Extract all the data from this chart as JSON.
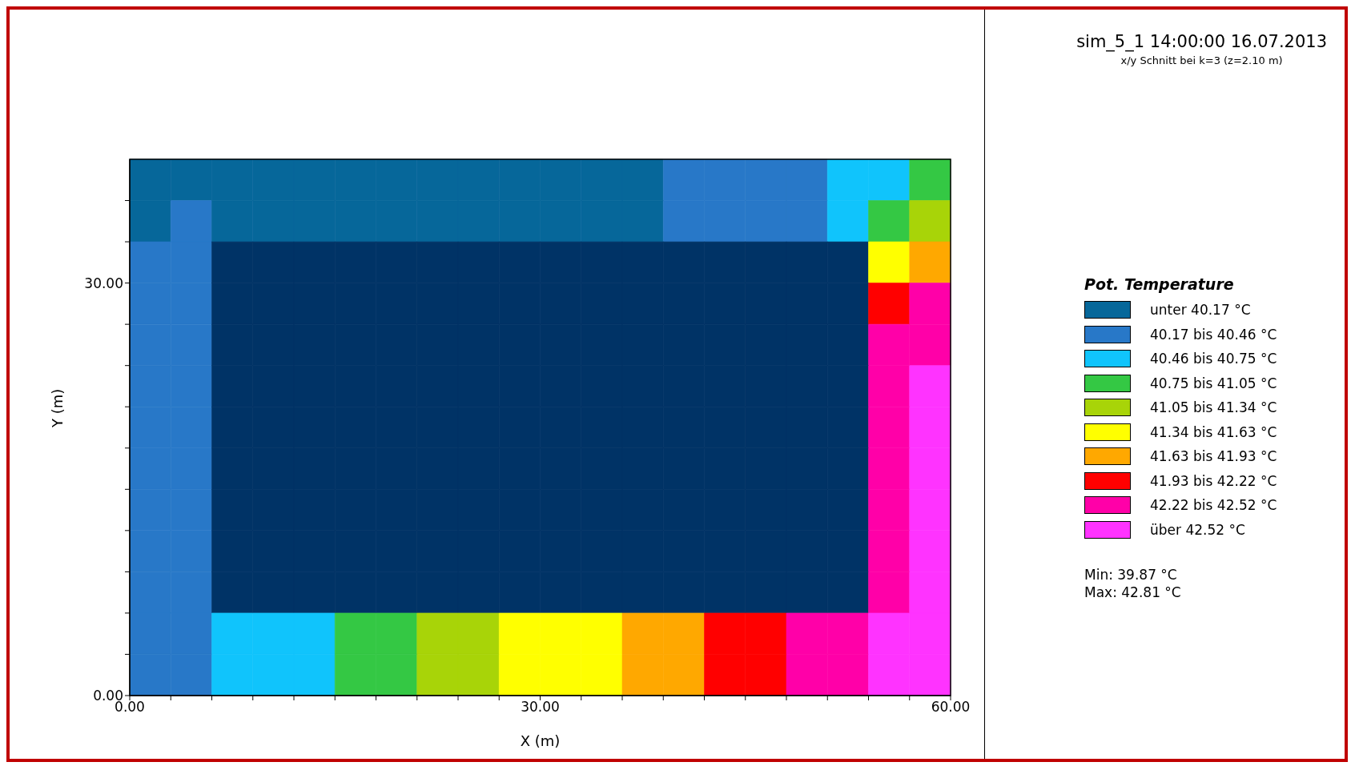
{
  "chart_data": {
    "type": "heatmap",
    "title": "sim_5_1 14:00:00 16.07.2013",
    "subtitle": "x/y Schnitt bei k=3 (z=2.10 m)",
    "xlabel": "X (m)",
    "ylabel": "Y (m)",
    "legend_title": "Pot. Temperature",
    "annotations": [
      "Min: 39.87 °C",
      "Max: 42.81 °C"
    ],
    "xlim": [
      0,
      60
    ],
    "ylim": [
      0,
      39
    ],
    "xticks": [
      {
        "value": 0,
        "label": "0.00"
      },
      {
        "value": 3,
        "label": null
      },
      {
        "value": 6,
        "label": null
      },
      {
        "value": 9,
        "label": null
      },
      {
        "value": 12,
        "label": null
      },
      {
        "value": 15,
        "label": null
      },
      {
        "value": 18,
        "label": null
      },
      {
        "value": 21,
        "label": null
      },
      {
        "value": 24,
        "label": null
      },
      {
        "value": 27,
        "label": null
      },
      {
        "value": 30,
        "label": "30.00"
      },
      {
        "value": 33,
        "label": null
      },
      {
        "value": 36,
        "label": null
      },
      {
        "value": 39,
        "label": null
      },
      {
        "value": 42,
        "label": null
      },
      {
        "value": 45,
        "label": null
      },
      {
        "value": 48,
        "label": null
      },
      {
        "value": 51,
        "label": null
      },
      {
        "value": 54,
        "label": null
      },
      {
        "value": 57,
        "label": null
      },
      {
        "value": 60,
        "label": "60.00"
      }
    ],
    "yticks": [
      {
        "value": 0,
        "label": "0.00"
      },
      {
        "value": 3,
        "label": null
      },
      {
        "value": 6,
        "label": null
      },
      {
        "value": 9,
        "label": null
      },
      {
        "value": 12,
        "label": null
      },
      {
        "value": 15,
        "label": null
      },
      {
        "value": 18,
        "label": null
      },
      {
        "value": 21,
        "label": null
      },
      {
        "value": 24,
        "label": null
      },
      {
        "value": 27,
        "label": null
      },
      {
        "value": 30,
        "label": "30.00"
      },
      {
        "value": 33,
        "label": null
      },
      {
        "value": 36,
        "label": null
      }
    ],
    "clim": [
      39.87,
      42.81
    ],
    "cticks": [
      {
        "value": 40.02,
        "label": "unter 40.17 °C"
      },
      {
        "value": 40.315,
        "label": "40.17 bis 40.46 °C"
      },
      {
        "value": 40.605,
        "label": "40.46 bis 40.75 °C"
      },
      {
        "value": 40.9,
        "label": "40.75 bis 41.05 °C"
      },
      {
        "value": 41.195,
        "label": "41.05 bis 41.34 °C"
      },
      {
        "value": 41.485,
        "label": "41.34 bis 41.63 °C"
      },
      {
        "value": 41.78,
        "label": "41.63 bis 41.93 °C"
      },
      {
        "value": 42.075,
        "label": "41.93 bis 42.22 °C"
      },
      {
        "value": 42.37,
        "label": "42.22 bis 42.52 °C"
      },
      {
        "value": 42.665,
        "label": "über 42.52 °C"
      }
    ],
    "colors": [
      "#06679a",
      "#2878c8",
      "#10c4fc",
      "#34c844",
      "#a8d408",
      "#ffff00",
      "#ffa800",
      "#ff0000",
      "#ff00a8",
      "#ff33ff"
    ],
    "cells": [
      [
        40.02,
        40.02,
        40.02,
        40.02,
        40.02,
        40.02,
        40.02,
        40.02,
        40.02,
        40.02,
        40.02,
        40.02,
        40.02,
        40.315,
        40.315,
        40.315,
        40.315,
        40.605,
        40.605,
        40.9
      ],
      [
        40.02,
        40.315,
        40.02,
        40.02,
        40.02,
        40.02,
        40.02,
        40.02,
        40.02,
        40.02,
        40.02,
        40.02,
        40.02,
        40.315,
        40.315,
        40.315,
        40.315,
        40.605,
        40.9,
        41.195
      ],
      [
        40.315,
        40.315,
        null,
        null,
        null,
        null,
        null,
        null,
        null,
        null,
        null,
        null,
        null,
        null,
        null,
        null,
        null,
        null,
        41.485,
        41.78
      ],
      [
        40.315,
        40.315,
        null,
        null,
        null,
        null,
        null,
        null,
        null,
        null,
        null,
        null,
        null,
        null,
        null,
        null,
        null,
        null,
        42.075,
        42.37
      ],
      [
        40.315,
        40.315,
        null,
        null,
        null,
        null,
        null,
        null,
        null,
        null,
        null,
        null,
        null,
        null,
        null,
        null,
        null,
        null,
        42.37,
        42.37
      ],
      [
        40.315,
        40.315,
        null,
        null,
        null,
        null,
        null,
        null,
        null,
        null,
        null,
        null,
        null,
        null,
        null,
        null,
        null,
        null,
        42.37,
        42.665
      ],
      [
        40.315,
        40.315,
        null,
        null,
        null,
        null,
        null,
        null,
        null,
        null,
        null,
        null,
        null,
        null,
        null,
        null,
        null,
        null,
        42.37,
        42.665
      ],
      [
        40.315,
        40.315,
        null,
        null,
        null,
        null,
        null,
        null,
        null,
        null,
        null,
        null,
        null,
        null,
        null,
        null,
        null,
        null,
        42.37,
        42.665
      ],
      [
        40.315,
        40.315,
        null,
        null,
        null,
        null,
        null,
        null,
        null,
        null,
        null,
        null,
        null,
        null,
        null,
        null,
        null,
        null,
        42.37,
        42.665
      ],
      [
        40.315,
        40.315,
        null,
        null,
        null,
        null,
        null,
        null,
        null,
        null,
        null,
        null,
        null,
        null,
        null,
        null,
        null,
        null,
        42.37,
        42.665
      ],
      [
        40.315,
        40.315,
        null,
        null,
        null,
        null,
        null,
        null,
        null,
        null,
        null,
        null,
        null,
        null,
        null,
        null,
        null,
        null,
        42.37,
        42.665
      ],
      [
        40.315,
        40.315,
        40.605,
        40.605,
        40.605,
        40.9,
        40.9,
        41.195,
        41.195,
        41.485,
        41.485,
        41.485,
        41.78,
        41.78,
        42.075,
        42.075,
        42.37,
        42.37,
        42.665,
        42.665
      ],
      [
        40.315,
        40.315,
        40.605,
        40.605,
        40.605,
        40.9,
        40.9,
        41.195,
        41.195,
        41.485,
        41.485,
        41.485,
        41.78,
        41.78,
        42.075,
        42.075,
        42.37,
        42.37,
        42.665,
        42.665
      ]
    ]
  }
}
